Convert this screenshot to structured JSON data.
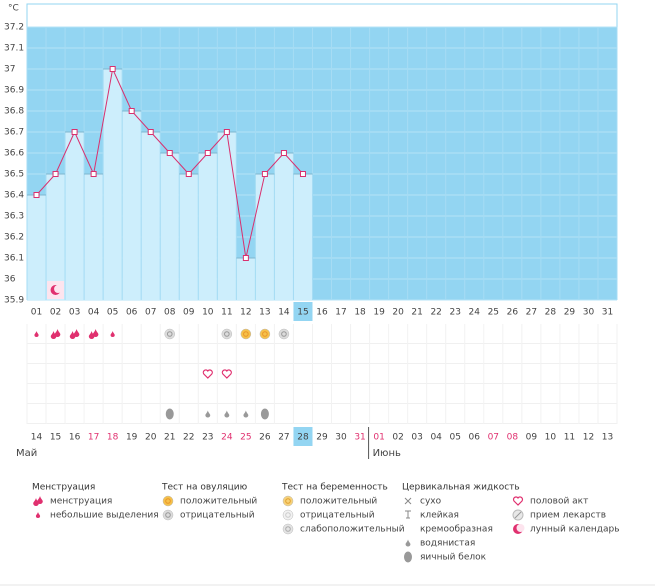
{
  "chart_data": {
    "type": "line",
    "unit": "°C",
    "ylim": [
      35.9,
      37.2
    ],
    "yticks": [
      35.9,
      36,
      36.1,
      36.2,
      36.3,
      36.4,
      36.5,
      36.6,
      36.7,
      36.8,
      36.9,
      37,
      37.1,
      37.2
    ],
    "categories": [
      "01",
      "02",
      "03",
      "04",
      "05",
      "06",
      "07",
      "08",
      "09",
      "10",
      "11",
      "12",
      "13",
      "14",
      "15",
      "16",
      "17",
      "18",
      "19",
      "20",
      "21",
      "22",
      "23",
      "24",
      "25",
      "26",
      "27",
      "28",
      "29",
      "30",
      "31"
    ],
    "values": [
      36.4,
      36.5,
      36.7,
      36.5,
      37.0,
      36.8,
      36.7,
      36.6,
      36.5,
      36.6,
      36.7,
      36.1,
      36.5,
      36.6,
      36.5,
      null,
      null,
      null,
      null,
      null,
      null,
      null,
      null,
      null,
      null,
      null,
      null,
      null,
      null,
      null,
      null
    ],
    "color": "#d9306e",
    "bar_color": "#cdeefc",
    "background": "#93d5f2",
    "current_day": "15",
    "plot_marks": [
      null,
      "лунный календарь",
      null,
      null,
      null,
      null,
      null,
      null,
      null,
      null,
      null,
      null,
      null,
      null,
      null,
      null,
      null,
      null,
      null,
      null,
      null,
      null,
      null,
      null,
      null,
      null,
      null,
      null,
      null,
      null,
      null
    ],
    "symptom_rows": [
      [
        "небольшие выделения",
        "менструация",
        "менструация",
        "менструация",
        "небольшие выделения",
        null,
        null,
        "отрицательный",
        null,
        null,
        "отрицательный",
        "положительный",
        "положительный",
        "отрицательный",
        null,
        null,
        null,
        null,
        null,
        null,
        null,
        null,
        null,
        null,
        null,
        null,
        null,
        null,
        null,
        null,
        null
      ],
      [
        null,
        null,
        null,
        null,
        null,
        null,
        null,
        null,
        null,
        null,
        null,
        null,
        null,
        null,
        null,
        null,
        null,
        null,
        null,
        null,
        null,
        null,
        null,
        null,
        null,
        null,
        null,
        null,
        null,
        null,
        null
      ],
      [
        null,
        null,
        null,
        null,
        null,
        null,
        null,
        null,
        null,
        "половой акт",
        "половой акт",
        null,
        null,
        null,
        null,
        null,
        null,
        null,
        null,
        null,
        null,
        null,
        null,
        null,
        null,
        null,
        null,
        null,
        null,
        null,
        null
      ],
      [
        null,
        null,
        null,
        null,
        null,
        null,
        null,
        null,
        null,
        null,
        null,
        null,
        null,
        null,
        null,
        null,
        null,
        null,
        null,
        null,
        null,
        null,
        null,
        null,
        null,
        null,
        null,
        null,
        null,
        null,
        null
      ],
      [
        null,
        null,
        null,
        null,
        null,
        null,
        null,
        "яичный белок",
        null,
        "водянистая",
        "водянистая",
        "водянистая",
        "яичный белок",
        null,
        null,
        null,
        null,
        null,
        null,
        null,
        null,
        null,
        null,
        null,
        null,
        null,
        null,
        null,
        null,
        null,
        null
      ]
    ],
    "dates": [
      "14",
      "15",
      "16",
      "17",
      "18",
      "19",
      "20",
      "21",
      "22",
      "23",
      "24",
      "25",
      "26",
      "27",
      "28",
      "29",
      "30",
      "31",
      "01",
      "02",
      "03",
      "04",
      "05",
      "06",
      "07",
      "08",
      "09",
      "10",
      "11",
      "12",
      "13"
    ],
    "weekend_dates": [
      "17",
      "18",
      "24",
      "25",
      "31",
      "01",
      "07",
      "08"
    ],
    "today_date": "28",
    "months": [
      {
        "label": "Май",
        "start": "14"
      },
      {
        "label": "Июнь",
        "start": "01"
      }
    ],
    "legend": [
      {
        "title": "Менструация",
        "items": [
          "менструация",
          "небольшие выделения"
        ]
      },
      {
        "title": "Тест на овуляцию",
        "items": [
          "положительный",
          "отрицательный"
        ]
      },
      {
        "title": "Тест на беременность",
        "items": [
          "положительный",
          "отрицательный",
          "слабоположительный"
        ]
      },
      {
        "title": "Цервикальная жидкость",
        "items": [
          "сухо",
          "клейкая",
          "кремообразная",
          "водянистая",
          "яичный белок",
          "половой акт",
          "прием лекарств",
          "лунный календарь"
        ]
      }
    ]
  }
}
